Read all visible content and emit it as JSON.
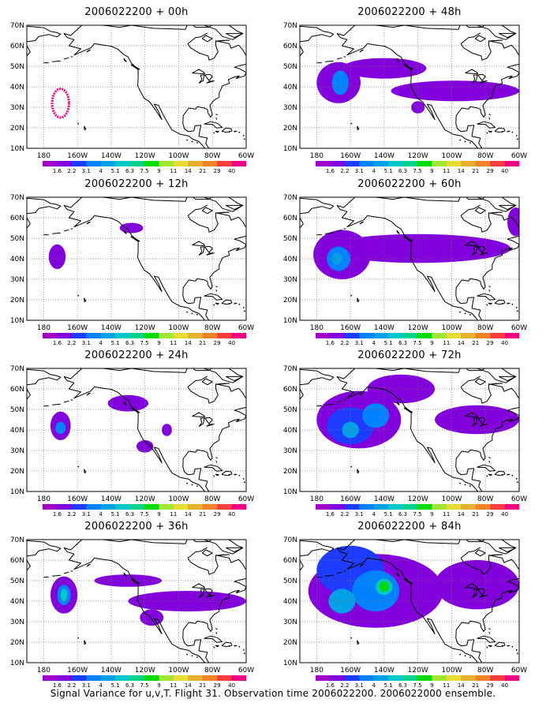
{
  "axes": {
    "lat_labels": [
      "70N",
      "60N",
      "50N",
      "40N",
      "30N",
      "20N",
      "10N"
    ],
    "lon_labels": [
      "180",
      "160W",
      "140W",
      "120W",
      "100W",
      "80W",
      "60W"
    ]
  },
  "colorbar": {
    "labels": [
      "1.6",
      "2.2",
      "3.1",
      "4",
      "5.1",
      "6.3",
      "7.5",
      "9",
      "11",
      "14",
      "21",
      "29",
      "40"
    ],
    "colors": [
      "#a000c8",
      "#8200dc",
      "#1e3cff",
      "#0082ff",
      "#00a0e6",
      "#00c8c8",
      "#00d28c",
      "#00dc00",
      "#a0e632",
      "#e6dc32",
      "#e6af2d",
      "#f08228",
      "#fa3c3c",
      "#f00082"
    ]
  },
  "panels": [
    {
      "title": "2006022200 + 00h",
      "blobs": [
        {
          "level": 13,
          "lon": -170,
          "lat": 32,
          "rlon": 5,
          "rlat": 7,
          "ring": true
        }
      ]
    },
    {
      "title": "2006022200 + 48h",
      "blobs": [
        {
          "level": 1,
          "lon": -167,
          "lat": 42,
          "rlon": 13,
          "rlat": 10
        },
        {
          "level": 1,
          "lon": -140,
          "lat": 49,
          "rlon": 25,
          "rlat": 5
        },
        {
          "level": 1,
          "lon": -98,
          "lat": 38,
          "rlon": 38,
          "rlat": 5
        },
        {
          "level": 1,
          "lon": -120,
          "lat": 30,
          "rlon": 4,
          "rlat": 3
        },
        {
          "level": 3,
          "lon": -166,
          "lat": 42,
          "rlon": 5,
          "rlat": 6
        }
      ]
    },
    {
      "title": "2006022200 + 12h",
      "blobs": [
        {
          "level": 1,
          "lon": -172,
          "lat": 41,
          "rlon": 5,
          "rlat": 6
        },
        {
          "level": 1,
          "lon": -128,
          "lat": 55,
          "rlon": 7,
          "rlat": 2.5
        }
      ]
    },
    {
      "title": "2006022200 + 60h",
      "blobs": [
        {
          "level": 1,
          "lon": -165,
          "lat": 42,
          "rlon": 17,
          "rlat": 12
        },
        {
          "level": 1,
          "lon": -120,
          "lat": 45,
          "rlon": 55,
          "rlat": 7
        },
        {
          "level": 1,
          "lon": -62,
          "lat": 58,
          "rlon": 5,
          "rlat": 7
        },
        {
          "level": 3,
          "lon": -167,
          "lat": 40,
          "rlon": 7,
          "rlat": 6
        },
        {
          "level": 4,
          "lon": -168,
          "lat": 40,
          "rlon": 3,
          "rlat": 3
        }
      ]
    },
    {
      "title": "2006022200 + 24h",
      "blobs": [
        {
          "level": 1,
          "lon": -170,
          "lat": 42,
          "rlon": 6,
          "rlat": 7
        },
        {
          "level": 1,
          "lon": -130,
          "lat": 53,
          "rlon": 12,
          "rlat": 4
        },
        {
          "level": 1,
          "lon": -120,
          "lat": 32,
          "rlon": 5,
          "rlat": 3
        },
        {
          "level": 1,
          "lon": -107,
          "lat": 40,
          "rlon": 3,
          "rlat": 3
        },
        {
          "level": 3,
          "lon": -170,
          "lat": 41,
          "rlon": 3,
          "rlat": 3
        }
      ]
    },
    {
      "title": "2006022200 + 72h",
      "blobs": [
        {
          "level": 1,
          "lon": -155,
          "lat": 45,
          "rlon": 25,
          "rlat": 14
        },
        {
          "level": 1,
          "lon": -85,
          "lat": 45,
          "rlon": 25,
          "rlat": 7
        },
        {
          "level": 1,
          "lon": -130,
          "lat": 60,
          "rlon": 20,
          "rlat": 7
        },
        {
          "level": 2,
          "lon": -160,
          "lat": 42,
          "rlon": 14,
          "rlat": 9
        },
        {
          "level": 3,
          "lon": -145,
          "lat": 47,
          "rlon": 8,
          "rlat": 6
        },
        {
          "level": 4,
          "lon": -160,
          "lat": 40,
          "rlon": 5,
          "rlat": 4
        }
      ]
    },
    {
      "title": "2006022200 + 36h",
      "blobs": [
        {
          "level": 1,
          "lon": -168,
          "lat": 43,
          "rlon": 8,
          "rlat": 9
        },
        {
          "level": 1,
          "lon": -130,
          "lat": 50,
          "rlon": 20,
          "rlat": 3
        },
        {
          "level": 1,
          "lon": -95,
          "lat": 40,
          "rlon": 35,
          "rlat": 5
        },
        {
          "level": 1,
          "lon": -116,
          "lat": 32,
          "rlon": 7,
          "rlat": 4
        },
        {
          "level": 3,
          "lon": -168,
          "lat": 43,
          "rlon": 4,
          "rlat": 5
        },
        {
          "level": 5,
          "lon": -168,
          "lat": 43,
          "rlon": 2,
          "rlat": 3
        }
      ]
    },
    {
      "title": "2006022200 + 84h",
      "blobs": [
        {
          "level": 1,
          "lon": -145,
          "lat": 45,
          "rlon": 40,
          "rlat": 18
        },
        {
          "level": 1,
          "lon": -85,
          "lat": 48,
          "rlon": 25,
          "rlat": 12
        },
        {
          "level": 2,
          "lon": -160,
          "lat": 55,
          "rlon": 20,
          "rlat": 12
        },
        {
          "level": 3,
          "lon": -145,
          "lat": 45,
          "rlon": 14,
          "rlat": 10
        },
        {
          "level": 4,
          "lon": -165,
          "lat": 40,
          "rlon": 8,
          "rlat": 6
        },
        {
          "level": 5,
          "lon": -140,
          "lat": 47,
          "rlon": 5,
          "rlat": 4
        },
        {
          "level": 7,
          "lon": -140,
          "lat": 47,
          "rlon": 3,
          "rlat": 2.5
        }
      ]
    }
  ],
  "footer": "Signal Variance for u,v,T. Flight 31. Observation time 2006022200. 2006022000 ensemble."
}
